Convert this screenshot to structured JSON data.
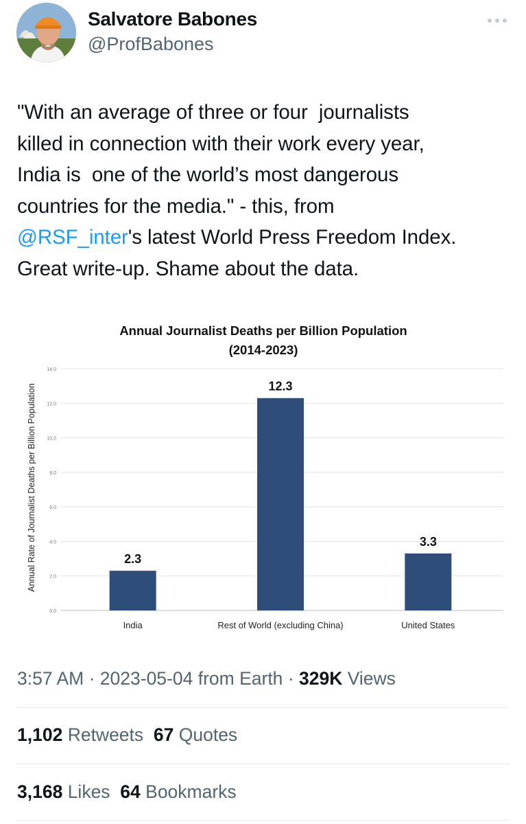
{
  "author": {
    "name": "Salvatore Babones",
    "handle": "@ProfBabones"
  },
  "tweet": {
    "lines": [
      "\"With an average of three or four  journalists",
      "killed in connection with their work every year,",
      "India is  one of the world’s most dangerous",
      "countries for the media.\" - this, from"
    ],
    "mention": "@RSF_inter",
    "line5_rest": "'s latest World Press Freedom Index.",
    "line6": "Great write-up. Shame about the data."
  },
  "chart_data": {
    "type": "bar",
    "title_line1": "Annual Journalist Deaths per Billion Population",
    "title_line2": "(2014-2023)",
    "ylabel": "Annual Rate of Journalist Deaths per Billion Population",
    "xlabel": "",
    "categories": [
      "India",
      "Rest of World (excluding China)",
      "United States"
    ],
    "values": [
      2.3,
      12.3,
      3.3
    ],
    "value_labels": [
      "2.3",
      "12.3",
      "3.3"
    ],
    "ylim": [
      0,
      14
    ],
    "yticks": [
      "0.0",
      "2.0",
      "4.0",
      "6.0",
      "8.0",
      "10.0",
      "12.0",
      "14.0"
    ],
    "grid": true,
    "bar_color": "#2e4d78"
  },
  "meta": {
    "time": "3:57 AM",
    "sep1": " · ",
    "date": "2023-05-04",
    "source": " from Earth",
    "sep2": " · ",
    "views_count": "329K",
    "views_label": " Views"
  },
  "stats": {
    "retweets_count": "1,102",
    "retweets_label": " Retweets",
    "quotes_count": "67",
    "quotes_label": " Quotes",
    "likes_count": "3,168",
    "likes_label": " Likes",
    "bookmarks_count": "64",
    "bookmarks_label": " Bookmarks"
  },
  "colors": {
    "text": "#0f1419",
    "secondary": "#536471",
    "link": "#1d9bf0"
  }
}
